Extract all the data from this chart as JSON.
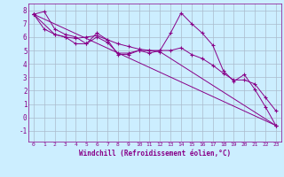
{
  "xlabel": "Windchill (Refroidissement éolien,°C)",
  "bg_color": "#cceeff",
  "grid_color": "#aabbcc",
  "line_color": "#880088",
  "xlim": [
    -0.5,
    23.5
  ],
  "ylim": [
    -1.8,
    8.5
  ],
  "yticks": [
    -1,
    0,
    1,
    2,
    3,
    4,
    5,
    6,
    7,
    8
  ],
  "xticks": [
    0,
    1,
    2,
    3,
    4,
    5,
    6,
    7,
    8,
    9,
    10,
    11,
    12,
    13,
    14,
    15,
    16,
    17,
    18,
    19,
    20,
    21,
    22,
    23
  ],
  "series": [
    {
      "x": [
        0,
        1,
        2,
        3,
        4,
        5,
        6,
        7,
        8,
        9,
        10,
        11,
        12,
        13,
        14,
        15,
        16,
        17,
        18,
        19,
        20,
        21,
        22,
        23
      ],
      "y": [
        7.7,
        7.9,
        6.6,
        6.2,
        6.0,
        5.5,
        6.3,
        5.8,
        4.7,
        4.7,
        5.0,
        4.8,
        5.0,
        6.3,
        7.8,
        7.0,
        6.3,
        5.4,
        3.5,
        2.7,
        3.2,
        2.1,
        0.8,
        -0.6
      ]
    },
    {
      "x": [
        0,
        1,
        2,
        3,
        4,
        5,
        6,
        7,
        8,
        9,
        10,
        11,
        12,
        13,
        14,
        15,
        16,
        17,
        18,
        19,
        20,
        21,
        22,
        23
      ],
      "y": [
        7.7,
        6.6,
        6.2,
        6.0,
        5.5,
        5.5,
        6.0,
        5.6,
        4.8,
        4.8,
        5.0,
        5.0,
        5.0,
        5.0,
        5.2,
        4.7,
        4.4,
        3.9,
        3.3,
        2.8,
        2.8,
        2.5,
        1.5,
        0.5
      ]
    },
    {
      "x": [
        0,
        2,
        3,
        4,
        5,
        6,
        7,
        8,
        9,
        10,
        11,
        12,
        23
      ],
      "y": [
        7.7,
        6.2,
        6.0,
        5.9,
        6.0,
        6.1,
        5.8,
        5.5,
        5.3,
        5.1,
        5.0,
        4.9,
        -0.6
      ]
    },
    {
      "x": [
        0,
        23
      ],
      "y": [
        7.7,
        -0.6
      ]
    }
  ]
}
